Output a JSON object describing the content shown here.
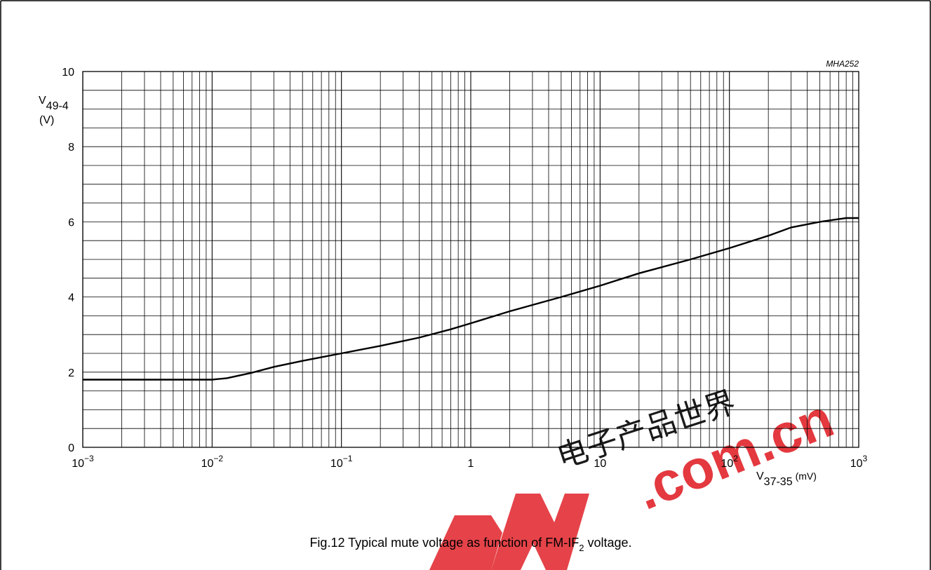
{
  "chart_data": {
    "type": "line",
    "figure_ref": "MHA252",
    "title": "Fig.12  Typical mute voltage as function of FM-IF",
    "title_subscript": "2",
    "title_suffix": " voltage.",
    "ylabel": "V",
    "ylabel_subscript": "49-4",
    "ylabel_unit": "(V)",
    "xlabel": "V",
    "xlabel_subscript": "37-35",
    "xlabel_unit": "(mV)",
    "x_scale": "log",
    "xlim": [
      0.001,
      1000
    ],
    "ylim": [
      0,
      10
    ],
    "grid": true,
    "x_ticks": [
      {
        "base": "10",
        "exp": "−3",
        "value": 0.001
      },
      {
        "base": "10",
        "exp": "−2",
        "value": 0.01
      },
      {
        "base": "10",
        "exp": "−1",
        "value": 0.1
      },
      {
        "base": "1",
        "exp": "",
        "value": 1
      },
      {
        "base": "10",
        "exp": "",
        "value": 10
      },
      {
        "base": "10",
        "exp": "2",
        "value": 100
      },
      {
        "base": "10",
        "exp": "3",
        "value": 1000
      }
    ],
    "y_ticks": [
      {
        "label": "0",
        "value": 0
      },
      {
        "label": "2",
        "value": 2
      },
      {
        "label": "4",
        "value": 4
      },
      {
        "label": "6",
        "value": 6
      },
      {
        "label": "8",
        "value": 8
      },
      {
        "label": "10",
        "value": 10
      }
    ],
    "series": [
      {
        "x": [
          0.001,
          0.002,
          0.005,
          0.01,
          0.013,
          0.02,
          0.03,
          0.05,
          0.1,
          0.2,
          0.4,
          0.7,
          1,
          2,
          5,
          10,
          20,
          50,
          100,
          200,
          300,
          500,
          800,
          1000
        ],
        "y": [
          1.8,
          1.8,
          1.8,
          1.8,
          1.84,
          1.98,
          2.14,
          2.3,
          2.5,
          2.7,
          2.92,
          3.14,
          3.3,
          3.62,
          4.0,
          4.3,
          4.63,
          5.0,
          5.3,
          5.63,
          5.85,
          6.0,
          6.1,
          6.1
        ]
      }
    ]
  },
  "watermark": {
    "text": ".com.cn",
    "chinese": "电子产品世界",
    "color": "#e0232a"
  }
}
